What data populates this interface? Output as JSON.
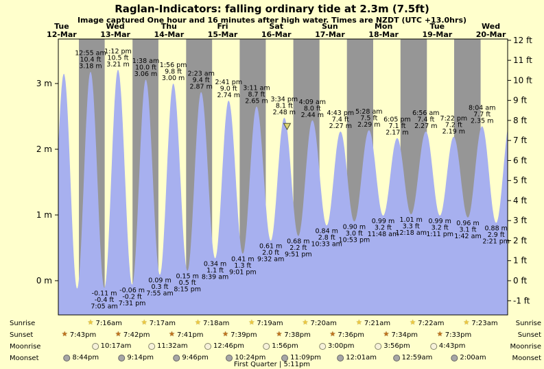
{
  "colors": {
    "background": "#ffffcc",
    "night_band": "#969696",
    "tide_fill": "#a7b0ef",
    "date_red": "#d40000",
    "marker_fill": "#ded773",
    "text": "#000000"
  },
  "chart_data": {
    "type": "area",
    "title": "Raglan-Indicators: falling ordinary tide at 2.3m (7.5ft)",
    "subtitle": "Image captured One hour and 16 minutes after high water. Times are NZDT (UTC +13.0hrs)",
    "time_axis": {
      "start_hours": 10.5,
      "end_hours": 211.5,
      "note": "hours measured from Tue 12-Mar 00:00"
    },
    "days": [
      {
        "dow": "Tue",
        "date": "12-Mar"
      },
      {
        "dow": "Wed",
        "date": "13-Mar"
      },
      {
        "dow": "Thu",
        "date": "14-Mar"
      },
      {
        "dow": "Fri",
        "date": "15-Mar"
      },
      {
        "dow": "Sat",
        "date": "16-Mar"
      },
      {
        "dow": "Sun",
        "date": "17-Mar"
      },
      {
        "dow": "Mon",
        "date": "18-Mar"
      },
      {
        "dow": "Tue",
        "date": "19-Mar"
      },
      {
        "dow": "Wed",
        "date": "20-Mar"
      }
    ],
    "y_axis_left": [
      {
        "value": 3,
        "label": "3 m"
      },
      {
        "value": 2,
        "label": "2 m"
      },
      {
        "value": 1,
        "label": "1 m"
      },
      {
        "value": 0,
        "label": "0 m"
      }
    ],
    "y_axis_right": [
      {
        "value": 12,
        "label": "12 ft"
      },
      {
        "value": 11,
        "label": "11 ft"
      },
      {
        "value": 10,
        "label": "10 ft"
      },
      {
        "value": 9,
        "label": "9 ft"
      },
      {
        "value": 8,
        "label": "8 ft"
      },
      {
        "value": 7,
        "label": "7 ft"
      },
      {
        "value": 6,
        "label": "6 ft"
      },
      {
        "value": 5,
        "label": "5 ft"
      },
      {
        "value": 4,
        "label": "4 ft"
      },
      {
        "value": 3,
        "label": "3 ft"
      },
      {
        "value": 2,
        "label": "2 ft"
      },
      {
        "value": 1,
        "label": "1 ft"
      },
      {
        "value": 0,
        "label": "0 ft"
      },
      {
        "value": -1,
        "label": "-1 ft"
      }
    ],
    "tide_events": [
      {
        "day": 0,
        "t": 6.7,
        "type": "low",
        "m": "-0.15",
        "annotated": false
      },
      {
        "day": 0,
        "t": 13.0,
        "type": "high",
        "m": "3.15",
        "annotated": false
      },
      {
        "day": 0,
        "t": 18.9,
        "type": "low",
        "m": "-0.12",
        "annotated": false
      },
      {
        "day": 1,
        "time": "12:55 am",
        "type": "high",
        "m": "3.18",
        "ft": "10.4"
      },
      {
        "day": 1,
        "time": "7:05 am",
        "type": "low",
        "m": "-0.11",
        "ft": "-0.4"
      },
      {
        "day": 1,
        "time": "1:12 pm",
        "type": "high",
        "m": "3.21",
        "ft": "10.5"
      },
      {
        "day": 1,
        "time": "7:31 pm",
        "type": "low",
        "m": "-0.06",
        "ft": "-0.2"
      },
      {
        "day": 2,
        "time": "1:38 am",
        "type": "high",
        "m": "3.06",
        "ft": "10.0"
      },
      {
        "day": 2,
        "time": "7:55 am",
        "type": "low",
        "m": "0.09",
        "ft": "0.3"
      },
      {
        "day": 2,
        "time": "1:56 pm",
        "type": "high",
        "m": "3.00",
        "ft": "9.8"
      },
      {
        "day": 2,
        "time": "8:15 pm",
        "type": "low",
        "m": "0.15",
        "ft": "0.5"
      },
      {
        "day": 3,
        "time": "2:23 am",
        "type": "high",
        "m": "2.87",
        "ft": "9.4"
      },
      {
        "day": 3,
        "time": "8:39 am",
        "type": "low",
        "m": "0.34",
        "ft": "1.1"
      },
      {
        "day": 3,
        "time": "2:41 pm",
        "type": "high",
        "m": "2.74",
        "ft": "9.0"
      },
      {
        "day": 3,
        "time": "9:01 pm",
        "type": "low",
        "m": "0.41",
        "ft": "1.3"
      },
      {
        "day": 4,
        "time": "3:11 am",
        "type": "high",
        "m": "2.65",
        "ft": "8.7"
      },
      {
        "day": 4,
        "time": "9:32 am",
        "type": "low",
        "m": "0.61",
        "ft": "2.0"
      },
      {
        "day": 4,
        "time": "3:34 pm",
        "type": "high",
        "m": "2.48",
        "ft": "8.1"
      },
      {
        "day": 4,
        "time": "9:51 pm",
        "type": "low",
        "m": "0.68",
        "ft": "2.2"
      },
      {
        "day": 5,
        "time": "4:09 am",
        "type": "high",
        "m": "2.44",
        "ft": "8.0"
      },
      {
        "day": 5,
        "time": "10:33 am",
        "type": "low",
        "m": "0.84",
        "ft": "2.8"
      },
      {
        "day": 5,
        "time": "4:43 pm",
        "type": "high",
        "m": "2.27",
        "ft": "7.4"
      },
      {
        "day": 5,
        "time": "10:53 pm",
        "type": "low",
        "m": "0.90",
        "ft": "3.0"
      },
      {
        "day": 6,
        "time": "5:28 am",
        "type": "high",
        "m": "2.29",
        "ft": "7.5"
      },
      {
        "day": 6,
        "time": "11:48 am",
        "type": "low",
        "m": "0.99",
        "ft": "3.2"
      },
      {
        "day": 6,
        "time": "6:05 pm",
        "type": "high",
        "m": "2.17",
        "ft": "7.1"
      },
      {
        "day": 7,
        "time": "12:18 am",
        "type": "low",
        "m": "1.01",
        "ft": "3.3"
      },
      {
        "day": 7,
        "time": "6:56 am",
        "type": "high",
        "m": "2.27",
        "ft": "7.4"
      },
      {
        "day": 7,
        "time": "1:11 pm",
        "type": "low",
        "m": "0.99",
        "ft": "3.2"
      },
      {
        "day": 7,
        "time": "7:22 pm",
        "type": "high",
        "m": "2.19",
        "ft": "7.2"
      },
      {
        "day": 8,
        "time": "1:42 am",
        "type": "low",
        "m": "0.96",
        "ft": "3.1"
      },
      {
        "day": 8,
        "time": "8:04 am",
        "type": "high",
        "m": "2.35",
        "ft": "7.7"
      },
      {
        "day": 8,
        "time": "2:21 pm",
        "type": "low",
        "m": "0.88",
        "ft": "2.9"
      },
      {
        "day": 8,
        "t": 212.7,
        "type": "high",
        "m": "2.45",
        "annotated": false
      }
    ],
    "current_marker": {
      "t": 112.83,
      "height_m": 2.3
    }
  },
  "astro": {
    "rows": [
      {
        "key": "sunrise",
        "label": "Sunrise",
        "icon": "sunrise-star-icon",
        "entries": [
          {
            "day": 1,
            "time": "7:16am"
          },
          {
            "day": 2,
            "time": "7:17am"
          },
          {
            "day": 3,
            "time": "7:18am"
          },
          {
            "day": 4,
            "time": "7:19am"
          },
          {
            "day": 5,
            "time": "7:20am"
          },
          {
            "day": 6,
            "time": "7:21am"
          },
          {
            "day": 7,
            "time": "7:22am"
          },
          {
            "day": 8,
            "time": "7:23am"
          }
        ]
      },
      {
        "key": "sunset",
        "label": "Sunset",
        "icon": "sunset-star-icon",
        "entries": [
          {
            "day": 0,
            "time": "7:43pm"
          },
          {
            "day": 1,
            "time": "7:42pm"
          },
          {
            "day": 2,
            "time": "7:41pm"
          },
          {
            "day": 3,
            "time": "7:39pm"
          },
          {
            "day": 4,
            "time": "7:38pm"
          },
          {
            "day": 5,
            "time": "7:36pm"
          },
          {
            "day": 6,
            "time": "7:34pm"
          },
          {
            "day": 7,
            "time": "7:33pm"
          }
        ]
      },
      {
        "key": "moonrise",
        "label": "Moonrise",
        "icon": "moonrise-circle-icon",
        "entries": [
          {
            "day": 1,
            "time": "10:17am"
          },
          {
            "day": 2,
            "time": "11:32am"
          },
          {
            "day": 3,
            "time": "12:46pm"
          },
          {
            "day": 4,
            "time": "1:56pm"
          },
          {
            "day": 5,
            "time": "3:00pm"
          },
          {
            "day": 6,
            "time": "3:56pm"
          },
          {
            "day": 7,
            "time": "4:43pm"
          }
        ]
      },
      {
        "key": "moonset",
        "label": "Moonset",
        "icon": "moonset-circle-icon",
        "entries": [
          {
            "day": 0,
            "time": "8:44pm"
          },
          {
            "day": 1,
            "time": "9:14pm"
          },
          {
            "day": 2,
            "time": "9:46pm"
          },
          {
            "day": 3,
            "time": "10:24pm"
          },
          {
            "day": 4,
            "time": "11:09pm"
          },
          {
            "day": 6,
            "time": "12:01am"
          },
          {
            "day": 7,
            "time": "12:59am"
          },
          {
            "day": 8,
            "time": "2:00am"
          }
        ]
      }
    ],
    "moon_phase": "First Quarter | 5:11pm"
  }
}
